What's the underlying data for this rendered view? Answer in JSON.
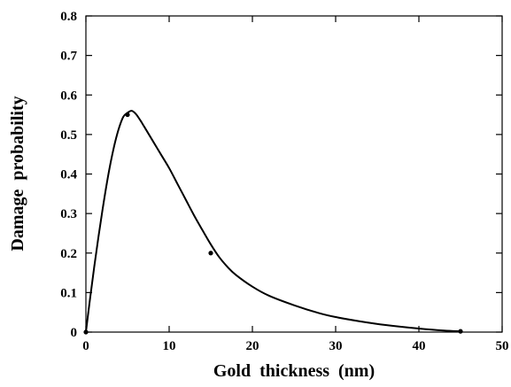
{
  "chart_data": {
    "type": "line",
    "title": "",
    "xlabel": "Gold  thickness  (nm)",
    "ylabel": "Damage  probability",
    "xlim": [
      0,
      50
    ],
    "ylim": [
      0,
      0.8
    ],
    "xticks": [
      0,
      10,
      20,
      30,
      40,
      50
    ],
    "yticks": [
      0,
      0.1,
      0.2,
      0.3,
      0.4,
      0.5,
      0.6,
      0.7,
      0.8
    ],
    "xtick_labels": [
      "0",
      "10",
      "20",
      "30",
      "40",
      "50"
    ],
    "ytick_labels": [
      "0",
      "0.1",
      "0.2",
      "0.3",
      "0.4",
      "0.5",
      "0.6",
      "0.7",
      "0.8"
    ],
    "grid": false,
    "legend": "none",
    "series": [
      {
        "kind": "curve",
        "x": [
          0,
          0.5,
          1,
          1.5,
          2,
          2.5,
          3,
          3.5,
          4,
          4.5,
          5,
          5.5,
          6,
          6.5,
          7,
          8,
          9,
          10,
          11,
          12,
          13,
          14,
          15,
          16,
          17,
          18,
          20,
          22,
          25,
          28,
          30,
          33,
          36,
          40,
          43,
          45
        ],
        "y": [
          0,
          0.085,
          0.165,
          0.24,
          0.31,
          0.375,
          0.432,
          0.48,
          0.518,
          0.545,
          0.555,
          0.56,
          0.552,
          0.537,
          0.52,
          0.485,
          0.45,
          0.415,
          0.375,
          0.335,
          0.295,
          0.258,
          0.222,
          0.19,
          0.165,
          0.145,
          0.115,
          0.092,
          0.068,
          0.048,
          0.038,
          0.027,
          0.018,
          0.009,
          0.004,
          0.002
        ]
      },
      {
        "kind": "points",
        "x": [
          0,
          5,
          15,
          45
        ],
        "y": [
          0,
          0.55,
          0.2,
          0.002
        ]
      }
    ],
    "colors": {
      "line": "#000000",
      "axis": "#000000",
      "background": "#ffffff"
    }
  }
}
